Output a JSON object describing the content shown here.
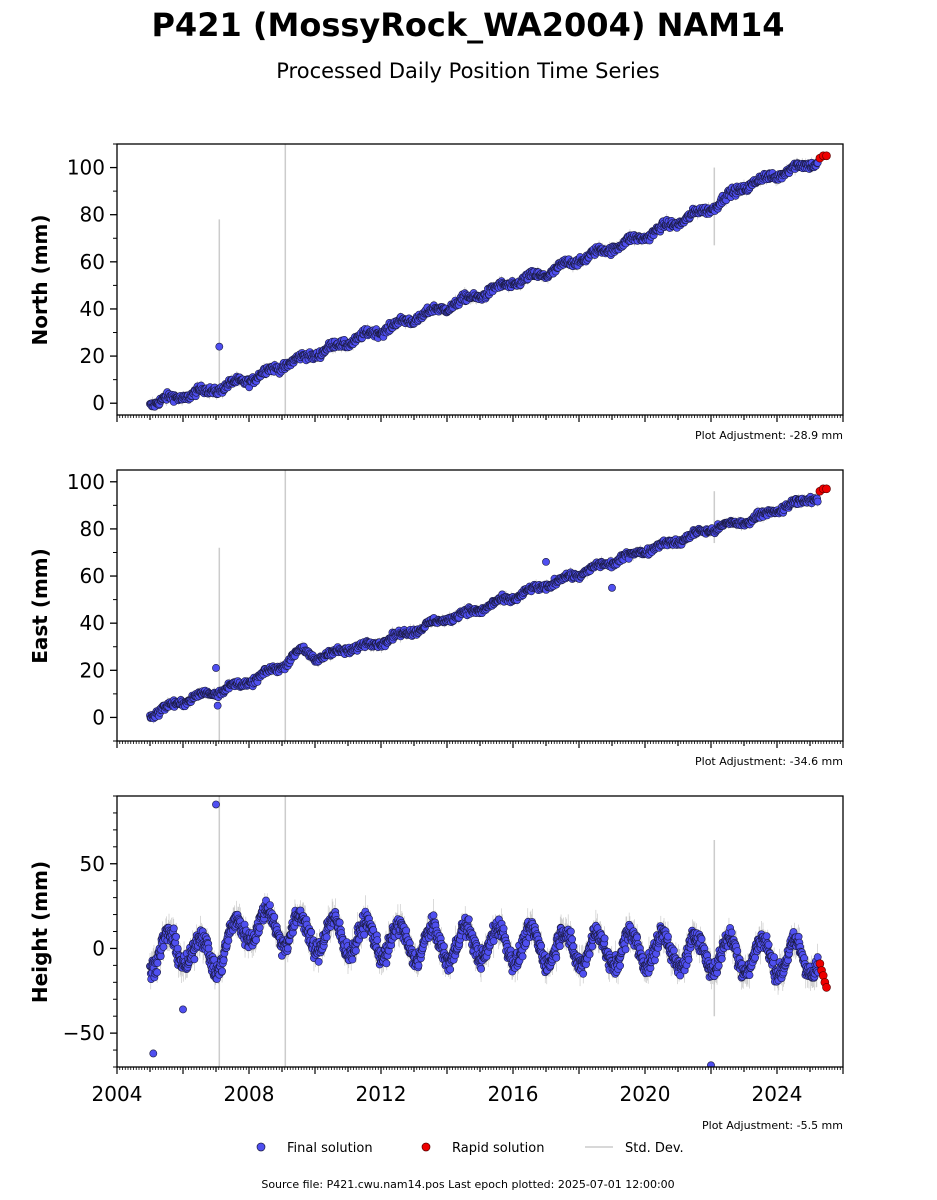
{
  "title": "P421 (MossyRock_WA2004) NAM14",
  "subtitle": "Processed Daily Position Time Series",
  "source_text": "Source file: P421.cwu.nam14.pos  Last epoch plotted: 2025-07-01 12:00:00",
  "legend": {
    "final": "Final solution",
    "rapid": "Rapid solution",
    "stddev": "Std. Dev."
  },
  "colors": {
    "final": "#4f4ff0",
    "final_edge": "#1a1a40",
    "rapid": "#ee0000",
    "stddev": "#bbbbbb"
  },
  "chart_data": [
    {
      "type": "scatter",
      "ylabel": "North (mm)",
      "adjustment": "Plot Adjustment: -28.9 mm",
      "ylim": [
        -5,
        110
      ],
      "yticks": [
        0,
        20,
        40,
        60,
        80,
        100
      ],
      "xlim": [
        2004,
        2026
      ],
      "series": [
        {
          "name": "Final solution",
          "x": [
            2005.0,
            2006.0,
            2007.0,
            2008.0,
            2009.0,
            2010.0,
            2011.0,
            2012.0,
            2013.0,
            2014.0,
            2015.0,
            2016.0,
            2017.0,
            2018.0,
            2019.0,
            2020.0,
            2021.0,
            2022.0,
            2023.0,
            2024.0,
            2025.0
          ],
          "y": [
            0,
            3,
            6,
            10,
            16,
            21,
            26,
            31,
            36,
            41,
            46,
            51,
            55,
            61,
            66,
            71,
            77,
            83,
            92,
            97,
            102
          ]
        },
        {
          "name": "Rapid solution",
          "x": [
            2025.3,
            2025.4,
            2025.5
          ],
          "y": [
            104,
            105,
            105
          ]
        }
      ],
      "outliers": [
        {
          "x": 2007.1,
          "y": 24
        }
      ],
      "stddev_bars": [
        {
          "x": 2007.1,
          "low": 4,
          "high": 78
        },
        {
          "x": 2009.1,
          "low": -5,
          "high": 110
        },
        {
          "x": 2022.1,
          "low": 67,
          "high": 100
        }
      ],
      "seasonal_amp": 1.2,
      "noise": 1.2
    },
    {
      "type": "scatter",
      "ylabel": "East (mm)",
      "adjustment": "Plot Adjustment: -34.6 mm",
      "ylim": [
        -10,
        105
      ],
      "yticks": [
        0,
        20,
        40,
        60,
        80,
        100
      ],
      "xlim": [
        2004,
        2026
      ],
      "series": [
        {
          "name": "Final solution",
          "x": [
            2005.0,
            2006.0,
            2007.0,
            2008.0,
            2009.0,
            2009.6,
            2010.0,
            2011.0,
            2012.0,
            2013.0,
            2014.0,
            2015.0,
            2016.0,
            2017.0,
            2018.0,
            2019.0,
            2020.0,
            2021.0,
            2022.0,
            2023.0,
            2024.0,
            2025.0
          ],
          "y": [
            1,
            7,
            11,
            15,
            22,
            29,
            25,
            29,
            32,
            37,
            42,
            46,
            51,
            56,
            61,
            66,
            71,
            75,
            80,
            83,
            88,
            93
          ]
        },
        {
          "name": "Rapid solution",
          "x": [
            2025.3,
            2025.4,
            2025.5
          ],
          "y": [
            96,
            97,
            97
          ]
        }
      ],
      "outliers": [
        {
          "x": 2007.0,
          "y": 21
        },
        {
          "x": 2007.05,
          "y": 5
        },
        {
          "x": 2017.0,
          "y": 66
        },
        {
          "x": 2019.0,
          "y": 55
        }
      ],
      "stddev_bars": [
        {
          "x": 2007.1,
          "low": -10,
          "high": 72
        },
        {
          "x": 2009.1,
          "low": -10,
          "high": 105
        },
        {
          "x": 2022.1,
          "low": 74,
          "high": 96
        }
      ],
      "seasonal_amp": 1.0,
      "noise": 1.0
    },
    {
      "type": "scatter",
      "ylabel": "Height (mm)",
      "adjustment": "Plot Adjustment: -5.5 mm",
      "ylim": [
        -70,
        90
      ],
      "yticks": [
        -50,
        0,
        50
      ],
      "ytick_labels": [
        "−50",
        "0",
        "50"
      ],
      "xlim": [
        2004,
        2026
      ],
      "xticks": [
        2004,
        2008,
        2012,
        2016,
        2020,
        2024
      ],
      "series": [
        {
          "name": "Final solution",
          "x": [
            2005.0,
            2006.0,
            2007.0,
            2008.0,
            2009.0,
            2010.0,
            2011.0,
            2012.0,
            2013.0,
            2014.0,
            2015.0,
            2016.0,
            2017.0,
            2018.0,
            2019.0,
            2020.0,
            2021.0,
            2022.0,
            2023.0,
            2024.0,
            2025.0
          ],
          "y": [
            -2,
            0,
            -5,
            15,
            12,
            8,
            7,
            5,
            3,
            2,
            4,
            2,
            1,
            0,
            -1,
            0,
            -2,
            -3,
            -4,
            -5,
            -6
          ]
        },
        {
          "name": "Rapid solution",
          "x": [
            2025.3,
            2025.35,
            2025.4,
            2025.45,
            2025.5
          ],
          "y": [
            -9,
            -13,
            -16,
            -20,
            -23
          ]
        }
      ],
      "outliers": [
        {
          "x": 2007.0,
          "y": 85
        },
        {
          "x": 2005.1,
          "y": -62
        },
        {
          "x": 2022.0,
          "y": -69
        },
        {
          "x": 2006.0,
          "y": -36
        }
      ],
      "stddev_bars": [
        {
          "x": 2007.1,
          "low": -70,
          "high": 90
        },
        {
          "x": 2009.1,
          "low": -70,
          "high": 90
        },
        {
          "x": 2022.1,
          "low": -40,
          "high": 64
        }
      ],
      "seasonal_amp": 10,
      "noise": 4
    }
  ]
}
